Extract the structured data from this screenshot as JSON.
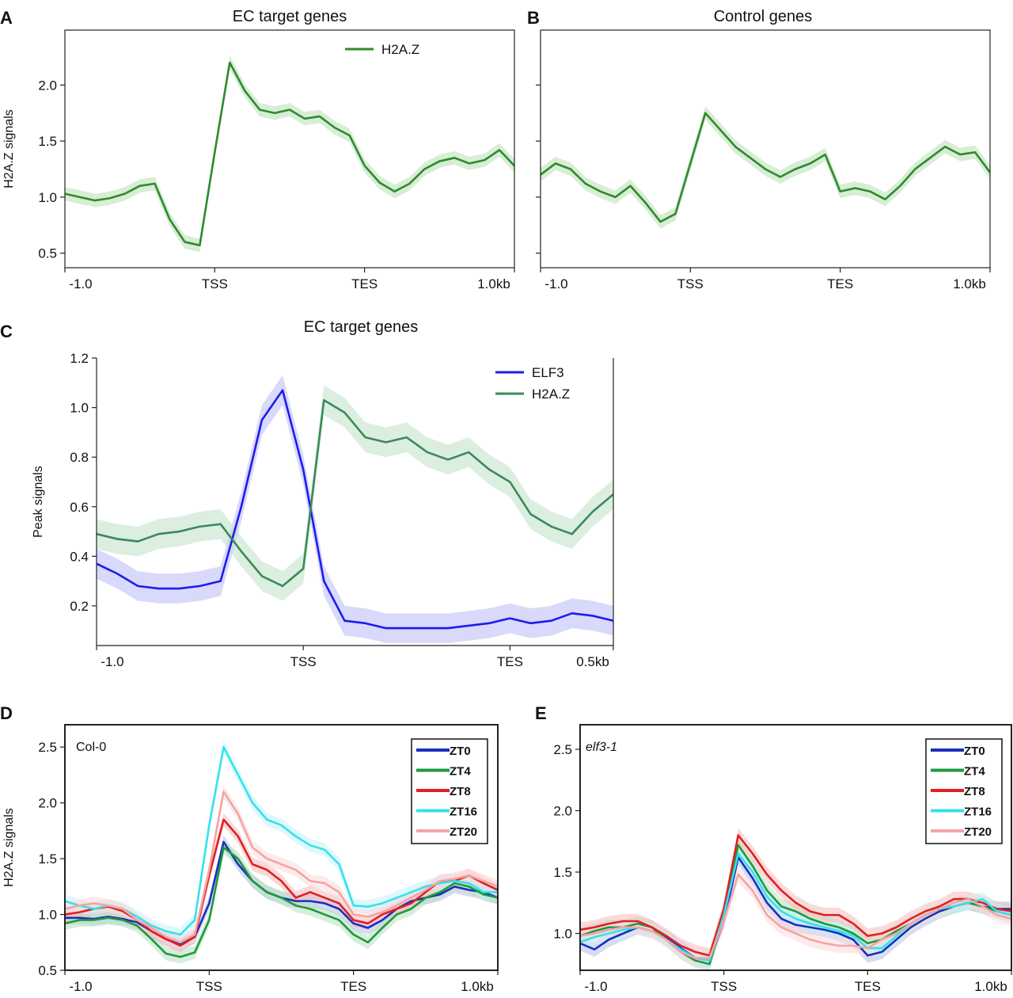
{
  "chart_data": [
    {
      "panel": "A",
      "type": "line",
      "title": "EC target genes",
      "ylabel": "H2A.Z signals",
      "x_tick_labels": [
        "-1.0",
        "TSS",
        "TES",
        "1.0kb"
      ],
      "y_ticks": [
        0.5,
        1.0,
        1.5,
        2.0
      ],
      "y_tick_labels": [
        "0.5",
        "1.0",
        "1.5",
        "2.0"
      ],
      "ylim": [
        0.37,
        2.49
      ],
      "legend": "top-center",
      "series": [
        {
          "name": "H2A.Z",
          "color": "#2e8b2e",
          "band_color": "#b8dfb2",
          "values": [
            1.03,
            1.0,
            0.97,
            0.99,
            1.03,
            1.1,
            1.12,
            0.8,
            0.6,
            0.57,
            1.4,
            2.2,
            1.95,
            1.78,
            1.75,
            1.78,
            1.7,
            1.72,
            1.62,
            1.55,
            1.28,
            1.13,
            1.05,
            1.12,
            1.25,
            1.32,
            1.35,
            1.3,
            1.33,
            1.42,
            1.28
          ]
        }
      ]
    },
    {
      "panel": "B",
      "type": "line",
      "title": "Control genes",
      "x_tick_labels": [
        "-1.0",
        "TSS",
        "TES",
        "1.0kb"
      ],
      "y_ticks": [
        0.5,
        1.0,
        1.5,
        2.0
      ],
      "ylim": [
        0.37,
        2.49
      ],
      "series": [
        {
          "color": "#2e8b2e",
          "band_color": "#b8dfb2",
          "values": [
            1.2,
            1.3,
            1.25,
            1.12,
            1.05,
            1.0,
            1.1,
            0.95,
            0.78,
            0.85,
            1.3,
            1.75,
            1.6,
            1.45,
            1.35,
            1.25,
            1.18,
            1.25,
            1.3,
            1.38,
            1.05,
            1.08,
            1.05,
            0.98,
            1.1,
            1.25,
            1.35,
            1.45,
            1.38,
            1.4,
            1.22
          ]
        }
      ]
    },
    {
      "panel": "C",
      "type": "line",
      "title": "EC target genes",
      "ylabel": "Peak signals",
      "x_tick_labels": [
        "-1.0",
        "TSS",
        "TES",
        "0.5kb"
      ],
      "y_ticks": [
        0.2,
        0.4,
        0.6,
        0.8,
        1.0,
        1.2
      ],
      "y_tick_labels": [
        "0.2",
        "0.4",
        "0.6",
        "0.8",
        "1.0",
        "1.2"
      ],
      "ylim": [
        0.04,
        1.2
      ],
      "legend": "top-right",
      "series": [
        {
          "name": "ELF3",
          "color": "#1c1cf0",
          "band_color": "#b9b9f7",
          "values": [
            0.37,
            0.33,
            0.28,
            0.27,
            0.27,
            0.28,
            0.3,
            0.6,
            0.95,
            1.07,
            0.75,
            0.3,
            0.14,
            0.13,
            0.11,
            0.11,
            0.11,
            0.11,
            0.12,
            0.13,
            0.15,
            0.13,
            0.14,
            0.17,
            0.16,
            0.14
          ]
        },
        {
          "name": "H2A.Z",
          "color": "#3a8a5a",
          "band_color": "#bfe0c6",
          "values": [
            0.49,
            0.47,
            0.46,
            0.49,
            0.5,
            0.52,
            0.53,
            0.42,
            0.32,
            0.28,
            0.35,
            1.03,
            0.98,
            0.88,
            0.86,
            0.88,
            0.82,
            0.79,
            0.82,
            0.75,
            0.7,
            0.57,
            0.52,
            0.49,
            0.58,
            0.65
          ]
        }
      ]
    },
    {
      "panel": "D",
      "type": "line",
      "annotation": "Col-0",
      "ylabel": "H2A.Z signals",
      "x_tick_labels": [
        "-1.0",
        "TSS",
        "TES",
        "1.0kb"
      ],
      "y_ticks": [
        0.5,
        1.0,
        1.5,
        2.0,
        2.5
      ],
      "y_tick_labels": [
        "0.5",
        "1.0",
        "1.5",
        "2.0",
        "2.5"
      ],
      "ylim": [
        0.5,
        2.7
      ],
      "legend": "top-right",
      "series": [
        {
          "name": "ZT0",
          "color": "#1a2fbf",
          "band_color": "#b8bfe8",
          "values": [
            0.97,
            0.97,
            0.96,
            0.98,
            0.96,
            0.93,
            0.85,
            0.78,
            0.73,
            0.8,
            1.1,
            1.65,
            1.45,
            1.3,
            1.2,
            1.15,
            1.12,
            1.12,
            1.1,
            1.05,
            0.92,
            0.88,
            0.95,
            1.05,
            1.12,
            1.15,
            1.18,
            1.25,
            1.22,
            1.2,
            1.15
          ]
        },
        {
          "name": "ZT4",
          "color": "#1e9a3c",
          "band_color": "#b6e0c0",
          "values": [
            0.92,
            0.95,
            0.95,
            0.97,
            0.95,
            0.9,
            0.78,
            0.65,
            0.62,
            0.66,
            0.95,
            1.6,
            1.5,
            1.3,
            1.2,
            1.15,
            1.08,
            1.05,
            1.0,
            0.95,
            0.82,
            0.75,
            0.88,
            1.0,
            1.05,
            1.15,
            1.2,
            1.28,
            1.25,
            1.18,
            1.15
          ]
        },
        {
          "name": "ZT8",
          "color": "#e02020",
          "band_color": "#f4bcbc",
          "values": [
            1.0,
            1.02,
            1.05,
            1.07,
            1.03,
            0.95,
            0.85,
            0.78,
            0.72,
            0.8,
            1.35,
            1.85,
            1.7,
            1.45,
            1.4,
            1.3,
            1.15,
            1.2,
            1.15,
            1.1,
            0.95,
            0.92,
            1.0,
            1.05,
            1.1,
            1.2,
            1.3,
            1.3,
            1.35,
            1.28,
            1.22
          ]
        },
        {
          "name": "ZT16",
          "color": "#33e2f0",
          "band_color": "#c4f4f8",
          "values": [
            1.12,
            1.08,
            1.05,
            1.08,
            1.05,
            0.98,
            0.9,
            0.85,
            0.82,
            0.95,
            1.8,
            2.5,
            2.25,
            2.0,
            1.85,
            1.8,
            1.7,
            1.62,
            1.58,
            1.45,
            1.08,
            1.07,
            1.1,
            1.15,
            1.2,
            1.25,
            1.28,
            1.3,
            1.28,
            1.2,
            1.2
          ]
        },
        {
          "name": "ZT20",
          "color": "#f4a4a4",
          "band_color": "#fbdada",
          "values": [
            1.05,
            1.08,
            1.1,
            1.08,
            1.05,
            0.95,
            0.88,
            0.8,
            0.75,
            0.82,
            1.4,
            2.1,
            1.9,
            1.6,
            1.5,
            1.45,
            1.4,
            1.3,
            1.28,
            1.2,
            1.0,
            0.98,
            1.02,
            1.08,
            1.15,
            1.22,
            1.3,
            1.32,
            1.35,
            1.3,
            1.25
          ]
        }
      ]
    },
    {
      "panel": "E",
      "type": "line",
      "annotation": "elf3-1",
      "x_tick_labels": [
        "-1.0",
        "TSS",
        "TES",
        "1.0kb"
      ],
      "y_ticks": [
        1.0,
        1.5,
        2.0,
        2.5
      ],
      "y_tick_labels": [
        "1.0",
        "1.5",
        "2.0",
        "2.5"
      ],
      "ylim": [
        0.7,
        2.7
      ],
      "legend": "top-right",
      "series": [
        {
          "name": "ZT0",
          "color": "#1a2fbf",
          "band_color": "#b8bfe8",
          "values": [
            0.92,
            0.87,
            0.95,
            1.0,
            1.05,
            1.02,
            0.97,
            0.88,
            0.8,
            0.78,
            1.1,
            1.62,
            1.45,
            1.25,
            1.12,
            1.07,
            1.05,
            1.03,
            1.0,
            0.95,
            0.82,
            0.85,
            0.95,
            1.05,
            1.12,
            1.18,
            1.22,
            1.25,
            1.22,
            1.2,
            1.2
          ]
        },
        {
          "name": "ZT4",
          "color": "#1e9a3c",
          "band_color": "#b6e0c0",
          "values": [
            0.98,
            1.02,
            1.05,
            1.05,
            1.08,
            1.05,
            0.95,
            0.85,
            0.78,
            0.75,
            1.15,
            1.72,
            1.55,
            1.35,
            1.22,
            1.18,
            1.12,
            1.08,
            1.05,
            1.0,
            0.92,
            0.95,
            1.02,
            1.08,
            1.15,
            1.2,
            1.22,
            1.25,
            1.22,
            1.18,
            1.15
          ]
        },
        {
          "name": "ZT8",
          "color": "#e02020",
          "band_color": "#f4bcbc",
          "values": [
            1.03,
            1.05,
            1.08,
            1.1,
            1.1,
            1.05,
            0.98,
            0.9,
            0.85,
            0.82,
            1.2,
            1.8,
            1.65,
            1.48,
            1.35,
            1.25,
            1.18,
            1.15,
            1.15,
            1.08,
            0.98,
            1.0,
            1.05,
            1.12,
            1.18,
            1.22,
            1.28,
            1.28,
            1.25,
            1.2,
            1.18
          ]
        },
        {
          "name": "ZT16",
          "color": "#33e2f0",
          "band_color": "#c4f4f8",
          "values": [
            0.93,
            0.97,
            1.0,
            1.03,
            1.05,
            1.02,
            0.95,
            0.87,
            0.8,
            0.78,
            1.15,
            1.65,
            1.5,
            1.3,
            1.18,
            1.12,
            1.08,
            1.05,
            1.02,
            0.98,
            0.88,
            0.88,
            0.98,
            1.08,
            1.15,
            1.2,
            1.22,
            1.25,
            1.28,
            1.18,
            1.15
          ]
        },
        {
          "name": "ZT20",
          "color": "#f4a4a4",
          "band_color": "#fbdada",
          "values": [
            0.98,
            1.0,
            1.03,
            1.05,
            1.05,
            1.02,
            0.95,
            0.85,
            0.8,
            0.8,
            1.1,
            1.48,
            1.35,
            1.15,
            1.05,
            1.0,
            0.95,
            0.92,
            0.9,
            0.9,
            0.88,
            0.95,
            1.0,
            1.08,
            1.15,
            1.2,
            1.25,
            1.28,
            1.22,
            1.15,
            1.12
          ]
        }
      ]
    }
  ]
}
